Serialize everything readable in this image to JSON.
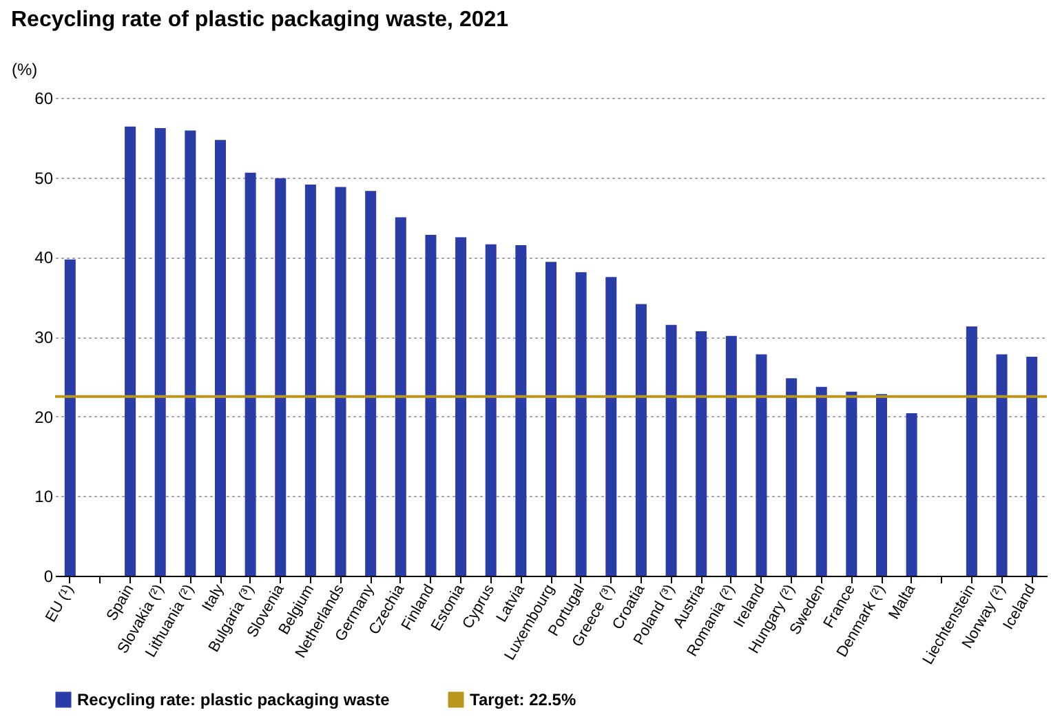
{
  "chart_data": {
    "type": "bar",
    "title": "Recycling rate of plastic packaging waste, 2021",
    "ylabel": "(%)",
    "categories": [
      "EU (¹)",
      null,
      "Spain",
      "Slovakia (²)",
      "Lithuania (²)",
      "Italy",
      "Bulgaria (³)",
      "Slovenia",
      "Belgium",
      "Netherlands",
      "Germany",
      "Czechia",
      "Finland",
      "Estonia",
      "Cyprus",
      "Latvia",
      "Luxembourg",
      "Portugal",
      "Greece (³)",
      "Croatia",
      "Poland (³)",
      "Austria",
      "Romania (²)",
      "Ireland",
      "Hungary (²)",
      "Sweden",
      "France",
      "Denmark (²)",
      "Malta",
      null,
      "Liechtenstein",
      "Norway (²)",
      "Iceland"
    ],
    "series": [
      {
        "name": "Recycling rate: plastic packaging waste",
        "color": "#2a3ca8",
        "values": [
          39.7,
          null,
          56.4,
          56.2,
          55.9,
          54.7,
          50.6,
          49.9,
          49.1,
          48.8,
          48.3,
          45.0,
          42.8,
          42.5,
          41.6,
          41.5,
          39.4,
          38.1,
          37.5,
          34.1,
          31.5,
          30.7,
          30.1,
          27.8,
          24.8,
          23.7,
          23.1,
          22.8,
          20.4,
          null,
          31.3,
          27.8,
          27.5
        ]
      }
    ],
    "ylim": [
      0,
      60
    ],
    "yticks": [
      0,
      10,
      20,
      30,
      40,
      50,
      60
    ],
    "grid": "y",
    "legend": "bottom",
    "ref_lines": [
      {
        "axis": "y",
        "value": 22.5,
        "label": "Target: 22.5%",
        "color": "#b8971c"
      }
    ]
  }
}
